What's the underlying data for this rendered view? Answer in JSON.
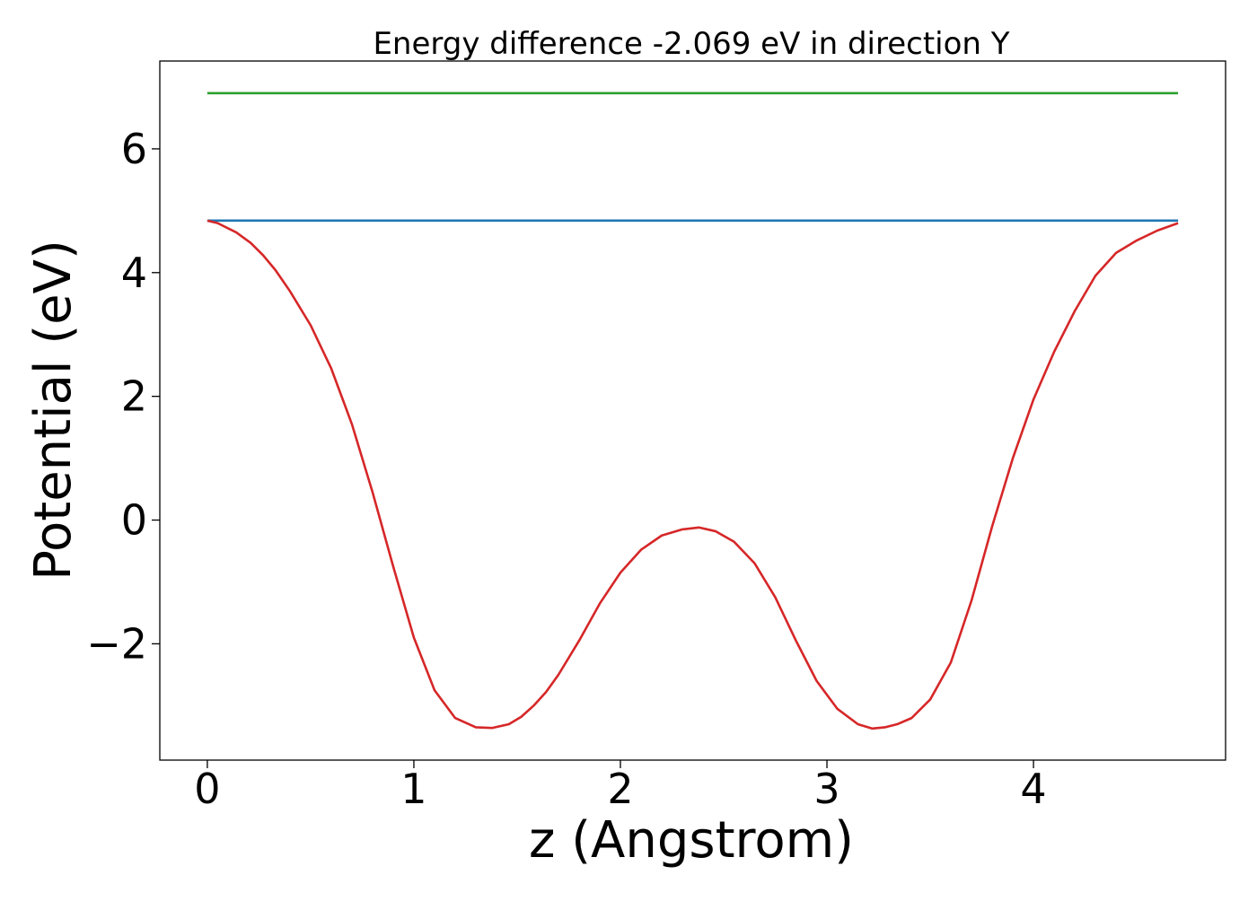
{
  "chart_data": {
    "type": "line",
    "title": "Energy difference -2.069 eV in direction Y",
    "xlabel": "z (Angstrom)",
    "ylabel": "Potential (eV)",
    "xlim": [
      -0.23,
      4.93
    ],
    "ylim": [
      -3.88,
      7.42
    ],
    "xticks": [
      0,
      1,
      2,
      3,
      4
    ],
    "xtick_labels": [
      "0",
      "1",
      "2",
      "3",
      "4"
    ],
    "yticks": [
      -2,
      0,
      2,
      4,
      6
    ],
    "ytick_labels": [
      "−2",
      "0",
      "2",
      "4",
      "6"
    ],
    "grid": false,
    "legend": false,
    "series": [
      {
        "color": "#2ca02c",
        "x": [
          0,
          4.7
        ],
        "y": [
          6.9,
          6.9
        ]
      },
      {
        "color": "#1f77b4",
        "x": [
          0,
          4.7
        ],
        "y": [
          4.84,
          4.84
        ]
      },
      {
        "color": "#d62728",
        "x": [
          0,
          0.05,
          0.14,
          0.21,
          0.27,
          0.33,
          0.4,
          0.5,
          0.6,
          0.7,
          0.8,
          0.9,
          1.0,
          1.1,
          1.2,
          1.3,
          1.38,
          1.46,
          1.52,
          1.58,
          1.64,
          1.7,
          1.8,
          1.9,
          2.0,
          2.1,
          2.2,
          2.3,
          2.38,
          2.46,
          2.55,
          2.65,
          2.75,
          2.85,
          2.95,
          3.05,
          3.15,
          3.22,
          3.28,
          3.34,
          3.41,
          3.5,
          3.6,
          3.7,
          3.8,
          3.9,
          4.0,
          4.1,
          4.2,
          4.3,
          4.4,
          4.5,
          4.6,
          4.7
        ],
        "y": [
          4.84,
          4.8,
          4.65,
          4.48,
          4.28,
          4.04,
          3.7,
          3.15,
          2.45,
          1.55,
          0.45,
          -0.75,
          -1.9,
          -2.75,
          -3.2,
          -3.35,
          -3.36,
          -3.3,
          -3.18,
          -3.0,
          -2.78,
          -2.5,
          -1.95,
          -1.35,
          -0.85,
          -0.48,
          -0.25,
          -0.15,
          -0.12,
          -0.18,
          -0.35,
          -0.7,
          -1.25,
          -1.95,
          -2.6,
          -3.05,
          -3.3,
          -3.37,
          -3.35,
          -3.3,
          -3.2,
          -2.9,
          -2.3,
          -1.3,
          -0.1,
          1.0,
          1.95,
          2.72,
          3.38,
          3.95,
          4.32,
          4.52,
          4.68,
          4.8
        ]
      }
    ]
  }
}
